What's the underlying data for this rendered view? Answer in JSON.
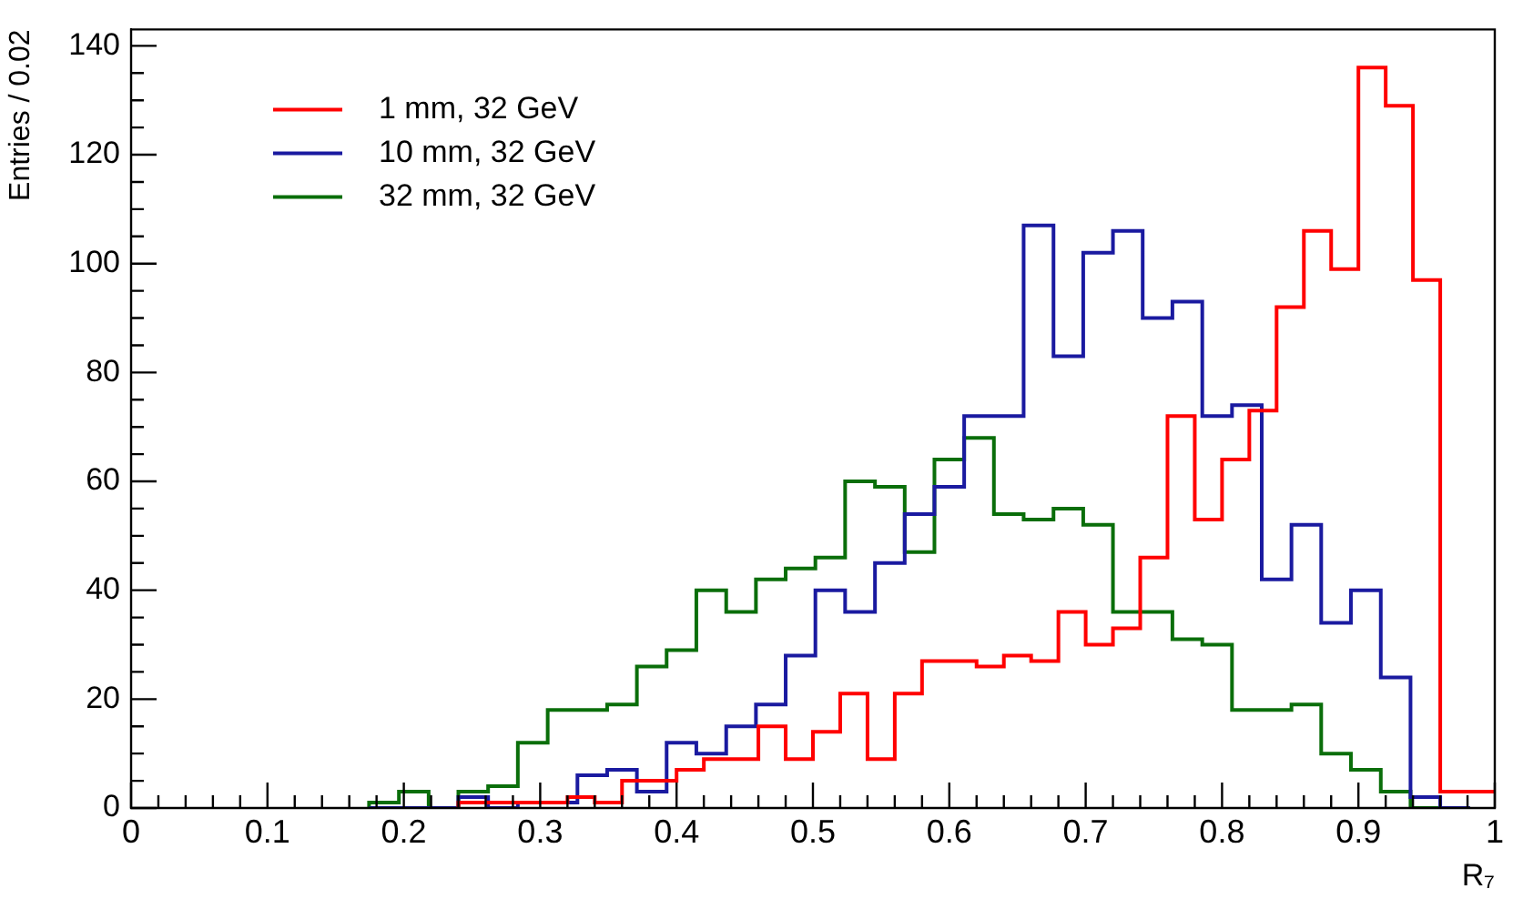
{
  "chart_data": {
    "type": "step",
    "xlabel": "R₇",
    "ylabel": "Entries / 0.02",
    "legend": "top left",
    "xlim": [
      0,
      1
    ],
    "ylim": [
      0,
      143
    ],
    "xticks": [
      0,
      {
        "value": 0.02,
        "label": null
      },
      {
        "value": 0.04,
        "label": null
      },
      {
        "value": 0.06,
        "label": null
      },
      {
        "value": 0.08,
        "label": null
      },
      0.1,
      {
        "value": 0.12,
        "label": null
      },
      {
        "value": 0.14,
        "label": null
      },
      {
        "value": 0.16,
        "label": null
      },
      {
        "value": 0.18,
        "label": null
      },
      0.2,
      {
        "value": 0.22,
        "label": null
      },
      {
        "value": 0.24,
        "label": null
      },
      {
        "value": 0.26,
        "label": null
      },
      {
        "value": 0.28,
        "label": null
      },
      0.3,
      {
        "value": 0.32,
        "label": null
      },
      {
        "value": 0.34,
        "label": null
      },
      {
        "value": 0.36,
        "label": null
      },
      {
        "value": 0.38,
        "label": null
      },
      0.4,
      {
        "value": 0.42,
        "label": null
      },
      {
        "value": 0.44,
        "label": null
      },
      {
        "value": 0.46,
        "label": null
      },
      {
        "value": 0.48,
        "label": null
      },
      0.5,
      {
        "value": 0.52,
        "label": null
      },
      {
        "value": 0.54,
        "label": null
      },
      {
        "value": 0.56,
        "label": null
      },
      {
        "value": 0.58,
        "label": null
      },
      0.6,
      {
        "value": 0.62,
        "label": null
      },
      {
        "value": 0.64,
        "label": null
      },
      {
        "value": 0.66,
        "label": null
      },
      {
        "value": 0.68,
        "label": null
      },
      0.7,
      {
        "value": 0.72,
        "label": null
      },
      {
        "value": 0.74,
        "label": null
      },
      {
        "value": 0.76,
        "label": null
      },
      {
        "value": 0.78,
        "label": null
      },
      0.8,
      {
        "value": 0.82,
        "label": null
      },
      {
        "value": 0.84,
        "label": null
      },
      {
        "value": 0.86,
        "label": null
      },
      {
        "value": 0.88,
        "label": null
      },
      0.9,
      {
        "value": 0.92,
        "label": null
      },
      {
        "value": 0.94,
        "label": null
      },
      {
        "value": 0.96,
        "label": null
      },
      {
        "value": 0.98,
        "label": null
      },
      1
    ],
    "yticks": [
      0,
      {
        "value": 5,
        "label": null
      },
      {
        "value": 10,
        "label": null
      },
      {
        "value": 15,
        "label": null
      },
      20,
      {
        "value": 25,
        "label": null
      },
      {
        "value": 30,
        "label": null
      },
      {
        "value": 35,
        "label": null
      },
      40,
      {
        "value": 45,
        "label": null
      },
      {
        "value": 50,
        "label": null
      },
      {
        "value": 55,
        "label": null
      },
      60,
      {
        "value": 65,
        "label": null
      },
      {
        "value": 70,
        "label": null
      },
      {
        "value": 75,
        "label": null
      },
      80,
      {
        "value": 85,
        "label": null
      },
      {
        "value": 90,
        "label": null
      },
      {
        "value": 95,
        "label": null
      },
      100,
      {
        "value": 105,
        "label": null
      },
      {
        "value": 110,
        "label": null
      },
      {
        "value": 115,
        "label": null
      },
      120,
      {
        "value": 125,
        "label": null
      },
      {
        "value": 130,
        "label": null
      },
      {
        "value": 135,
        "label": null
      },
      140
    ],
    "series": [
      {
        "name": "1 mm, 32 GeV",
        "color": "#ff0000",
        "x": [
          0.24,
          0.26,
          0.28,
          0.3,
          0.32,
          0.34,
          0.36,
          0.38,
          0.4,
          0.42,
          0.44,
          0.46,
          0.48,
          0.5,
          0.52,
          0.54,
          0.56,
          0.58,
          0.6,
          0.62,
          0.64,
          0.66,
          0.68,
          0.7,
          0.72,
          0.74,
          0.76,
          0.78,
          0.8,
          0.82,
          0.84,
          0.86,
          0.88,
          0.9,
          0.92,
          0.94,
          0.96,
          0.98,
          1
        ],
        "values": [
          0,
          1,
          1,
          1,
          1,
          2,
          1,
          5,
          5,
          7,
          9,
          9,
          15,
          9,
          14,
          21,
          9,
          21,
          27,
          27,
          26,
          28,
          27,
          36,
          30,
          33,
          46,
          72,
          53,
          64,
          73,
          92,
          106,
          99,
          136,
          129,
          97,
          3,
          3
        ]
      },
      {
        "name": "10 mm, 32 GeV",
        "color": "#1a1aa0",
        "x": [
          0.1745,
          0.1964,
          0.2182,
          0.24,
          0.2618,
          0.2836,
          0.3055,
          0.3273,
          0.3491,
          0.3709,
          0.3927,
          0.4145,
          0.4364,
          0.4582,
          0.48,
          0.5018,
          0.5236,
          0.5455,
          0.5673,
          0.5891,
          0.6109,
          0.6327,
          0.6545,
          0.6764,
          0.6982,
          0.72,
          0.7418,
          0.7636,
          0.7855,
          0.8073,
          0.8291,
          0.8509,
          0.8727,
          0.8945,
          0.9164,
          0.9382,
          0.96,
          0.9818
        ],
        "values": [
          0,
          0,
          0,
          0,
          2,
          0,
          1,
          1,
          6,
          7,
          3,
          12,
          10,
          15,
          19,
          28,
          40,
          36,
          45,
          54,
          59,
          72,
          72,
          107,
          83,
          102,
          106,
          90,
          93,
          72,
          74,
          42,
          52,
          34,
          40,
          24,
          2,
          0
        ]
      },
      {
        "name": "32 mm, 32 GeV",
        "color": "#0a6e0a",
        "x": [
          0.1745,
          0.1964,
          0.2182,
          0.24,
          0.2618,
          0.2836,
          0.3055,
          0.3273,
          0.3491,
          0.3709,
          0.3927,
          0.4145,
          0.4364,
          0.4582,
          0.48,
          0.5018,
          0.5236,
          0.5455,
          0.5673,
          0.5891,
          0.6109,
          0.6327,
          0.6545,
          0.6764,
          0.6982,
          0.72,
          0.7418,
          0.7636,
          0.7855,
          0.8073,
          0.8291,
          0.8509,
          0.8727,
          0.8945,
          0.9164,
          0.9382,
          0.96,
          0.9818
        ],
        "values": [
          0,
          1,
          3,
          0,
          3,
          4,
          12,
          18,
          18,
          19,
          26,
          29,
          40,
          36,
          42,
          44,
          46,
          60,
          59,
          47,
          64,
          68,
          54,
          53,
          55,
          52,
          36,
          36,
          31,
          30,
          18,
          18,
          19,
          10,
          7,
          3,
          0,
          0
        ]
      }
    ]
  }
}
